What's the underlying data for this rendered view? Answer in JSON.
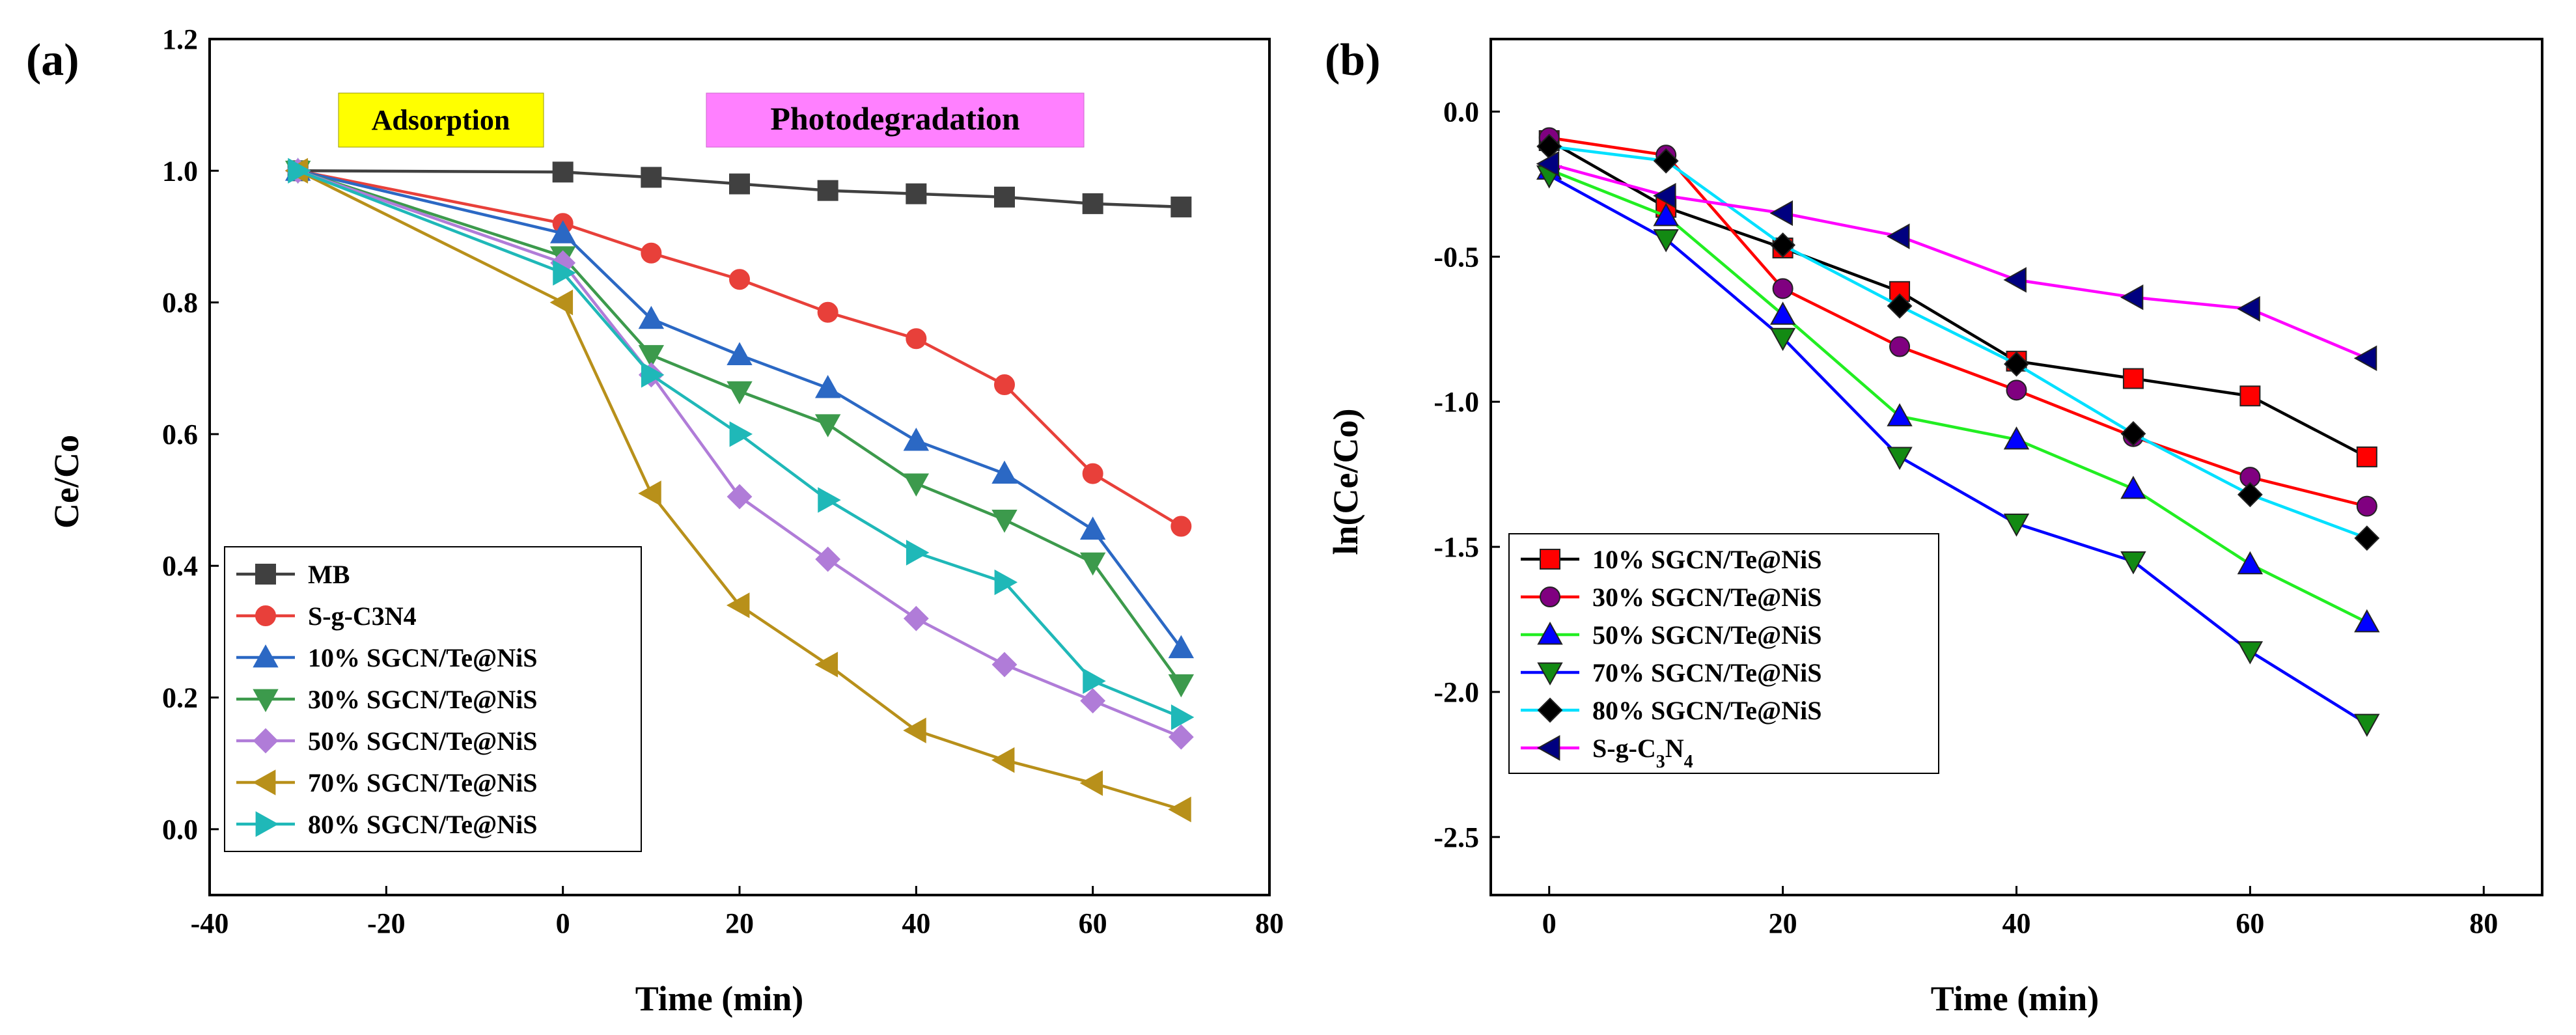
{
  "chart_data": [
    {
      "panel": "(a)",
      "type": "line",
      "title": "",
      "xlabel": "Time (min)",
      "ylabel": "Ce/Co",
      "xlim": [
        -40,
        80
      ],
      "ylim": [
        -0.1,
        1.2
      ],
      "xticks": [
        -40,
        -20,
        0,
        20,
        40,
        60,
        80
      ],
      "yticks": [
        0.0,
        0.2,
        0.4,
        0.6,
        0.8,
        1.0,
        1.2
      ],
      "xtick_labels": [
        "-40",
        "-20",
        "0",
        "20",
        "40",
        "60",
        "80"
      ],
      "ytick_labels": [
        "0.0",
        "0.2",
        "0.4",
        "0.6",
        "0.8",
        "1.0",
        "1.2"
      ],
      "legend_position": "bottom-left",
      "annotations": [
        {
          "text": "Adsorption",
          "color": "#ffff00"
        },
        {
          "text": "Photodegradation",
          "color": "#ff80ff"
        }
      ],
      "x": [
        -30,
        0,
        10,
        20,
        30,
        40,
        50,
        60,
        70
      ],
      "series": [
        {
          "name": "MB",
          "color": "#404040",
          "marker": "square",
          "values": [
            1.0,
            0.998,
            0.99,
            0.98,
            0.97,
            0.965,
            0.96,
            0.95,
            0.945
          ]
        },
        {
          "name": "S-g-C3N4",
          "color": "#e8403a",
          "marker": "circle",
          "values": [
            1.0,
            0.92,
            0.875,
            0.835,
            0.785,
            0.745,
            0.675,
            0.54,
            0.46
          ]
        },
        {
          "name": "10% SGCN/Te@NiS",
          "color": "#2b68c4",
          "marker": "triangle-up",
          "values": [
            1.0,
            0.905,
            0.775,
            0.72,
            0.67,
            0.59,
            0.54,
            0.455,
            0.275
          ]
        },
        {
          "name": "30% SGCN/Te@NiS",
          "color": "#3c9a4c",
          "marker": "triangle-down",
          "values": [
            1.0,
            0.87,
            0.72,
            0.665,
            0.615,
            0.525,
            0.47,
            0.405,
            0.22
          ]
        },
        {
          "name": "50% SGCN/Te@NiS",
          "color": "#b07cd8",
          "marker": "diamond",
          "values": [
            1.0,
            0.86,
            0.69,
            0.505,
            0.41,
            0.32,
            0.25,
            0.195,
            0.14
          ]
        },
        {
          "name": "70% SGCN/Te@NiS",
          "color": "#b8901a",
          "marker": "triangle-left",
          "values": [
            1.0,
            0.8,
            0.51,
            0.34,
            0.25,
            0.15,
            0.105,
            0.07,
            0.03
          ]
        },
        {
          "name": "80% SGCN/Te@NiS",
          "color": "#1fb8b8",
          "marker": "triangle-right",
          "values": [
            1.0,
            0.845,
            0.69,
            0.6,
            0.5,
            0.42,
            0.375,
            0.225,
            0.17
          ]
        }
      ]
    },
    {
      "panel": "(b)",
      "type": "line",
      "title": "",
      "xlabel": "Time (min)",
      "ylabel": "ln(Ce/Co)",
      "xlim": [
        -5,
        85
      ],
      "ylim": [
        -2.7,
        0.25
      ],
      "xticks": [
        0,
        20,
        40,
        60,
        80
      ],
      "yticks": [
        0.0,
        -0.5,
        -1.0,
        -1.5,
        -2.0,
        -2.5
      ],
      "xtick_labels": [
        "0",
        "20",
        "40",
        "60",
        "80"
      ],
      "ytick_labels": [
        "0.0",
        "-0.5",
        "-1.0",
        "-1.5",
        "-2.0",
        "-2.5"
      ],
      "legend_position": "bottom-left",
      "x": [
        0,
        10,
        20,
        30,
        40,
        50,
        60,
        70
      ],
      "series": [
        {
          "name": "10% SGCN/Te@NiS",
          "color": "#000000",
          "marker_color": "#ff0000",
          "marker": "square",
          "values": [
            -0.1,
            -0.33,
            -0.47,
            -0.62,
            -0.86,
            -0.92,
            -0.98,
            -1.19
          ]
        },
        {
          "name": "30% SGCN/Te@NiS",
          "color": "#ff0000",
          "marker_color": "#800080",
          "marker": "circle",
          "values": [
            -0.09,
            -0.15,
            -0.61,
            -0.81,
            -0.96,
            -1.12,
            -1.26,
            -1.36
          ]
        },
        {
          "name": "50% SGCN/Te@NiS",
          "color": "#22ee22",
          "marker_color": "#0000ff",
          "marker": "triangle-up",
          "values": [
            -0.2,
            -0.36,
            -0.7,
            -1.05,
            -1.13,
            -1.3,
            -1.56,
            -1.76
          ]
        },
        {
          "name": "70% SGCN/Te@NiS",
          "color": "#0000ff",
          "marker_color": "#138a13",
          "marker": "triangle-down",
          "values": [
            -0.22,
            -0.44,
            -0.78,
            -1.19,
            -1.42,
            -1.55,
            -1.86,
            -2.11
          ]
        },
        {
          "name": "80% SGCN/Te@NiS",
          "color": "#00e0ff",
          "marker_color": "#000000",
          "marker": "diamond",
          "values": [
            -0.12,
            -0.17,
            -0.46,
            -0.67,
            -0.87,
            -1.11,
            -1.32,
            -1.47
          ]
        },
        {
          "name": "S-g-C3N4",
          "color": "#ff00ff",
          "marker_color": "#000080",
          "marker": "triangle-left",
          "values": [
            -0.18,
            -0.29,
            -0.35,
            -0.43,
            -0.58,
            -0.64,
            -0.68,
            -0.85
          ]
        }
      ]
    }
  ]
}
